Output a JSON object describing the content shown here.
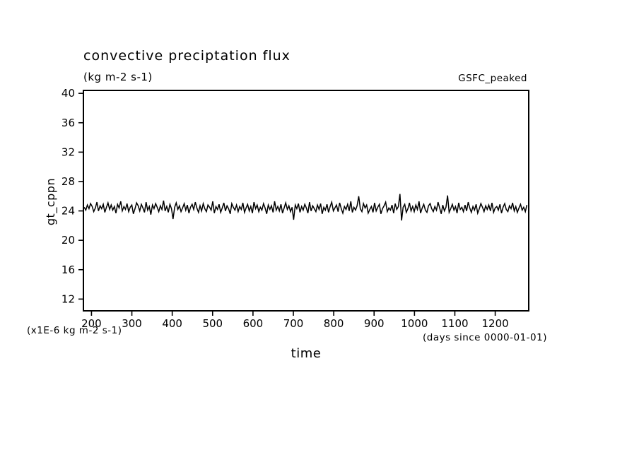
{
  "page": {
    "title": "convective preciptation flux",
    "subtitle": "(kg m-2 s-1)",
    "dataset_label": "GSFC_peaked",
    "ylabel": "gt_cppn",
    "xlabel": "time",
    "y_units_note": "(x1E-6 kg m-2 s-1)",
    "x_units_note": "(days since 0000-01-01)"
  },
  "chart_data": {
    "type": "line",
    "title": "convective preciptation flux",
    "subtitle": "(kg m-2 s-1)",
    "right_label": "GSFC_peaked",
    "xlabel": "time",
    "ylabel": "gt_cppn",
    "x_units": "days since 0000-01-01",
    "y_units": "x1E-6 kg m-2 s-1",
    "grid": false,
    "legend": "none",
    "line_color": "#000000",
    "background_color": "#ffffff",
    "xlim": [
      180,
      1283
    ],
    "ylim": [
      10.4,
      40.4
    ],
    "xticks": [
      200,
      300,
      400,
      500,
      600,
      700,
      800,
      900,
      1000,
      1100,
      1200
    ],
    "yticks": [
      12,
      16,
      20,
      24,
      28,
      32,
      36,
      40
    ],
    "x_start": 182,
    "x_step": 3.93,
    "values": [
      24.5,
      24.1,
      24.8,
      24.3,
      25.0,
      24.6,
      23.9,
      24.4,
      25.2,
      24.0,
      24.7,
      24.3,
      24.9,
      23.8,
      24.5,
      25.1,
      24.2,
      24.8,
      24.1,
      24.6,
      23.7,
      24.9,
      24.4,
      25.3,
      24.0,
      24.6,
      24.2,
      25.0,
      23.9,
      24.5,
      24.8,
      23.6,
      24.3,
      25.1,
      24.7,
      24.0,
      24.9,
      24.4,
      23.8,
      25.2,
      24.1,
      24.6,
      23.5,
      24.8,
      24.3,
      25.0,
      24.5,
      23.9,
      24.7,
      24.2,
      25.4,
      24.0,
      24.6,
      23.8,
      24.9,
      24.3,
      22.9,
      24.5,
      25.1,
      24.2,
      24.7,
      23.9,
      24.4,
      25.0,
      24.1,
      24.8,
      23.7,
      24.5,
      24.9,
      24.2,
      25.2,
      24.4,
      23.8,
      24.7,
      24.0,
      25.0,
      24.3,
      23.9,
      24.8,
      24.5,
      24.1,
      25.3,
      23.7,
      24.6,
      24.2,
      24.9,
      23.8,
      24.4,
      25.1,
      24.0,
      24.7,
      24.3,
      23.6,
      25.0,
      24.5,
      24.1,
      24.8,
      23.9,
      24.6,
      24.2,
      25.1,
      23.8,
      24.4,
      24.9,
      24.0,
      24.6,
      23.7,
      25.2,
      24.3,
      24.8,
      23.9,
      24.5,
      24.1,
      25.0,
      24.4,
      23.6,
      24.8,
      24.2,
      24.7,
      23.8,
      25.3,
      24.1,
      24.6,
      24.0,
      24.9,
      23.7,
      24.4,
      25.1,
      24.2,
      24.7,
      23.9,
      24.5,
      22.8,
      24.8,
      24.3,
      25.0,
      23.8,
      24.6,
      24.1,
      24.9,
      24.4,
      23.7,
      25.2,
      24.0,
      24.7,
      24.3,
      23.9,
      24.8,
      24.2,
      25.0,
      23.6,
      24.5,
      24.1,
      24.9,
      23.8,
      24.6,
      25.2,
      24.0,
      24.4,
      24.8,
      23.9,
      25.1,
      24.3,
      23.7,
      24.6,
      24.2,
      24.9,
      24.0,
      25.3,
      23.8,
      24.5,
      24.1,
      24.7,
      26.0,
      24.3,
      23.9,
      25.0,
      24.4,
      24.8,
      23.7,
      24.2,
      24.6,
      23.8,
      25.1,
      24.0,
      24.5,
      24.9,
      23.6,
      24.3,
      24.7,
      25.2,
      23.9,
      24.4,
      24.1,
      24.8,
      23.7,
      25.0,
      24.2,
      24.6,
      26.3,
      22.7,
      24.5,
      24.9,
      23.8,
      24.3,
      25.1,
      24.0,
      24.6,
      23.9,
      24.8,
      24.2,
      25.3,
      23.7,
      24.4,
      24.9,
      24.1,
      23.8,
      24.7,
      25.0,
      24.3,
      23.9,
      24.6,
      24.1,
      25.2,
      24.4,
      23.6,
      24.8,
      24.0,
      24.5,
      26.1,
      23.8,
      24.3,
      24.9,
      24.1,
      24.6,
      23.7,
      25.1,
      24.2,
      24.5,
      23.9,
      24.8,
      24.0,
      25.2,
      24.4,
      23.8,
      24.6,
      24.1,
      24.9,
      23.7,
      24.3,
      25.0,
      24.5,
      23.9,
      24.7,
      24.2,
      24.8,
      24.0,
      25.1,
      23.8,
      24.4,
      24.6,
      24.1,
      24.9,
      23.7,
      24.5,
      25.0,
      24.2,
      23.9,
      24.7,
      24.3,
      25.1,
      24.0,
      24.6,
      23.8,
      24.4,
      24.9,
      24.1,
      24.5,
      23.9,
      24.8
    ]
  }
}
